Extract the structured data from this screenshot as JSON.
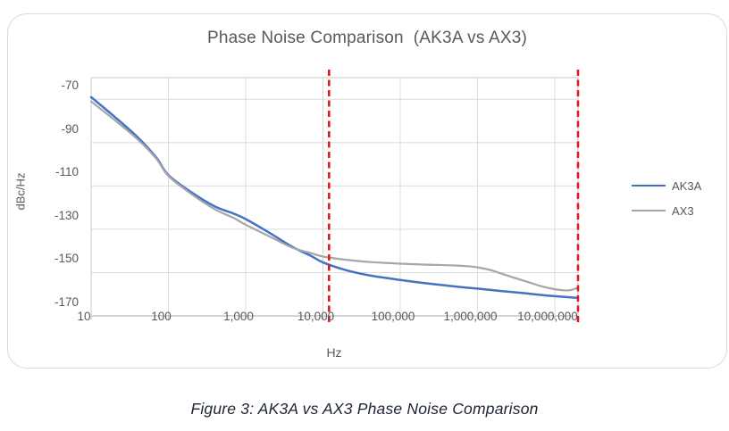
{
  "caption": "Figure 3: AK3A vs AX3 Phase Noise Comparison",
  "chart_data": {
    "type": "line",
    "title": "Phase Noise Comparison  (AK3A vs AX3)",
    "xlabel": "Hz",
    "ylabel": "dBc/Hz",
    "x_scale": "log",
    "xlim": [
      10,
      20000000
    ],
    "ylim": [
      -170,
      -60
    ],
    "grid": true,
    "legend_position": "right",
    "x_ticks": [
      "10",
      "100",
      "1,000",
      "10,000",
      "100,000",
      "1,000,000",
      "10,000,000"
    ],
    "x_tick_values": [
      10,
      100,
      1000,
      10000,
      100000,
      1000000,
      10000000
    ],
    "y_ticks": [
      "-70",
      "-90",
      "-110",
      "-130",
      "-150",
      "-170"
    ],
    "y_tick_values": [
      -70,
      -90,
      -110,
      -130,
      -150,
      -170
    ],
    "series": [
      {
        "name": "AK3A",
        "color": "#4472C4",
        "width": 2.5,
        "points": [
          [
            10,
            -69
          ],
          [
            20,
            -78
          ],
          [
            40,
            -87.5
          ],
          [
            70,
            -97
          ],
          [
            100,
            -105
          ],
          [
            200,
            -113
          ],
          [
            400,
            -119.5
          ],
          [
            700,
            -122.8
          ],
          [
            1000,
            -125.3
          ],
          [
            2000,
            -131.5
          ],
          [
            4000,
            -138.1
          ],
          [
            7000,
            -142.3
          ],
          [
            10000,
            -145.3
          ],
          [
            20000,
            -148.9
          ],
          [
            40000,
            -151.3
          ],
          [
            70000,
            -152.6
          ],
          [
            100000,
            -153.4
          ],
          [
            200000,
            -154.8
          ],
          [
            400000,
            -156.0
          ],
          [
            700000,
            -156.9
          ],
          [
            1000000,
            -157.4
          ],
          [
            2000000,
            -158.5
          ],
          [
            4000000,
            -159.5
          ],
          [
            7000000,
            -160.4
          ],
          [
            10000000,
            -160.9
          ],
          [
            14000000,
            -161.3
          ],
          [
            20000000,
            -161.7
          ]
        ]
      },
      {
        "name": "AX3",
        "color": "#A6A6A6",
        "width": 2.2,
        "points": [
          [
            10,
            -71
          ],
          [
            20,
            -79.5
          ],
          [
            40,
            -88.5
          ],
          [
            70,
            -97.5
          ],
          [
            100,
            -105.4
          ],
          [
            200,
            -113.8
          ],
          [
            400,
            -120.8
          ],
          [
            700,
            -124.8
          ],
          [
            1000,
            -127.9
          ],
          [
            2000,
            -133.2
          ],
          [
            4000,
            -138.5
          ],
          [
            7000,
            -141.0
          ],
          [
            10000,
            -142.6
          ],
          [
            20000,
            -144.1
          ],
          [
            40000,
            -145.1
          ],
          [
            70000,
            -145.6
          ],
          [
            100000,
            -145.9
          ],
          [
            200000,
            -146.3
          ],
          [
            400000,
            -146.6
          ],
          [
            700000,
            -147.0
          ],
          [
            1000000,
            -147.6
          ],
          [
            1500000,
            -148.9
          ],
          [
            2000000,
            -150.4
          ],
          [
            3000000,
            -152.4
          ],
          [
            5000000,
            -154.9
          ],
          [
            7000000,
            -156.5
          ],
          [
            10000000,
            -157.7
          ],
          [
            13000000,
            -158.2
          ],
          [
            16000000,
            -158.1
          ],
          [
            20000000,
            -157.0
          ]
        ]
      }
    ],
    "markers": {
      "style": "dashed-vertical",
      "color": "#E0191F",
      "x_values": [
        12000,
        20000000
      ]
    }
  },
  "colors": {
    "gridline": "#DBDBDB",
    "plot_border": "#D2D2D2",
    "axis_line": "#BFBFBF",
    "tick_text": "#595959",
    "title_text": "#595959",
    "caption_text": "#1C2431"
  }
}
